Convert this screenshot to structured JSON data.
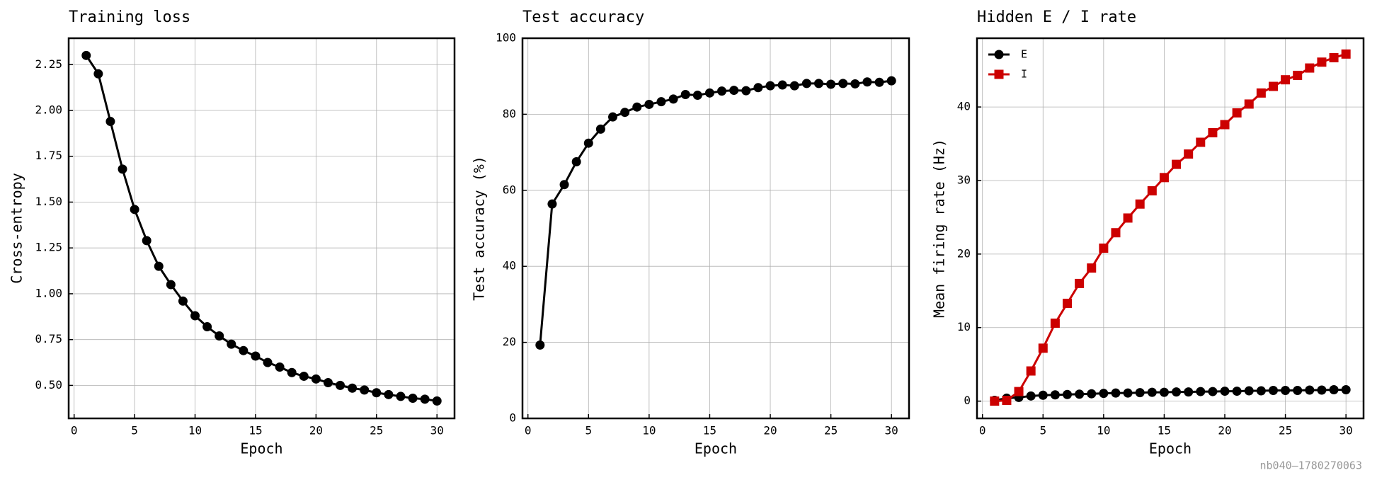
{
  "chart_data": [
    {
      "type": "line",
      "title": "Training loss",
      "x_label": "Epoch",
      "y_label": "Cross-entropy",
      "x": [
        1,
        2,
        3,
        4,
        5,
        6,
        7,
        8,
        9,
        10,
        11,
        12,
        13,
        14,
        15,
        16,
        17,
        18,
        19,
        20,
        21,
        22,
        23,
        24,
        25,
        26,
        27,
        28,
        29,
        30
      ],
      "series": [
        {
          "color": "#000000",
          "marker": "circle",
          "values": [
            2.3,
            2.2,
            1.94,
            1.68,
            1.46,
            1.29,
            1.15,
            1.05,
            0.96,
            0.88,
            0.82,
            0.77,
            0.725,
            0.69,
            0.66,
            0.625,
            0.6,
            0.57,
            0.55,
            0.535,
            0.515,
            0.5,
            0.485,
            0.475,
            0.46,
            0.45,
            0.44,
            0.43,
            0.425,
            0.415
          ]
        }
      ],
      "xlim": [
        -0.45,
        31.45
      ],
      "ylim": [
        0.32,
        2.394
      ],
      "xticks": [
        0,
        5,
        10,
        15,
        20,
        25,
        30
      ],
      "yticks": [
        {
          "value": 0.5,
          "label": "0.50"
        },
        0.75,
        {
          "value": 1,
          "label": "1.00"
        },
        1.25,
        {
          "value": 1.5,
          "label": "1.50"
        },
        1.75,
        {
          "value": 2,
          "label": "2.00"
        },
        2.25
      ],
      "grid": true
    },
    {
      "type": "line",
      "title": "Test accuracy",
      "x_label": "Epoch",
      "y_label": "Test accuracy (%)",
      "x": [
        1,
        2,
        3,
        4,
        5,
        6,
        7,
        8,
        9,
        10,
        11,
        12,
        13,
        14,
        15,
        16,
        17,
        18,
        19,
        20,
        21,
        22,
        23,
        24,
        25,
        26,
        27,
        28,
        29,
        30
      ],
      "series": [
        {
          "color": "#000000",
          "marker": "circle",
          "values": [
            19.3,
            56.4,
            61.5,
            67.5,
            72.4,
            76.1,
            79.3,
            80.5,
            81.9,
            82.6,
            83.3,
            84.0,
            85.2,
            85.0,
            85.6,
            86.1,
            86.3,
            86.2,
            87.0,
            87.5,
            87.7,
            87.5,
            88.1,
            88.1,
            87.9,
            88.1,
            88.0,
            88.5,
            88.4,
            88.8
          ]
        }
      ],
      "xlim": [
        -0.45,
        31.45
      ],
      "ylim": [
        0,
        100
      ],
      "xticks": [
        0,
        5,
        10,
        15,
        20,
        25,
        30
      ],
      "yticks": [
        0,
        20,
        40,
        60,
        80,
        100
      ],
      "grid": true
    },
    {
      "type": "line",
      "title": "Hidden E / I rate",
      "x_label": "Epoch",
      "y_label": "Mean firing rate (Hz)",
      "x": [
        1,
        2,
        3,
        4,
        5,
        6,
        7,
        8,
        9,
        10,
        11,
        12,
        13,
        14,
        15,
        16,
        17,
        18,
        19,
        20,
        21,
        22,
        23,
        24,
        25,
        26,
        27,
        28,
        29,
        30
      ],
      "series": [
        {
          "name": "E",
          "color": "#000000",
          "marker": "circle",
          "values": [
            0.1,
            0.4,
            0.5,
            0.7,
            0.8,
            0.85,
            0.9,
            0.95,
            1.0,
            1.05,
            1.1,
            1.1,
            1.15,
            1.2,
            1.2,
            1.25,
            1.25,
            1.3,
            1.3,
            1.35,
            1.35,
            1.4,
            1.4,
            1.45,
            1.45,
            1.45,
            1.5,
            1.5,
            1.55,
            1.55
          ]
        },
        {
          "name": "I",
          "color": "#cc0000",
          "marker": "square",
          "values": [
            0,
            0.1,
            1.3,
            4.1,
            7.2,
            10.6,
            13.3,
            16.0,
            18.1,
            20.8,
            22.9,
            24.9,
            26.8,
            28.6,
            30.4,
            32.2,
            33.6,
            35.2,
            36.5,
            37.6,
            39.2,
            40.4,
            41.9,
            42.8,
            43.7,
            44.3,
            45.3,
            46.1,
            46.7,
            47.2
          ]
        }
      ],
      "xlim": [
        -0.45,
        31.45
      ],
      "ylim": [
        -2.35,
        49.35
      ],
      "xticks": [
        0,
        5,
        10,
        15,
        20,
        25,
        30
      ],
      "yticks": [
        0,
        10,
        20,
        30,
        40
      ],
      "grid": true,
      "legend": "upper left"
    }
  ],
  "footer": "nb040–1780270063"
}
